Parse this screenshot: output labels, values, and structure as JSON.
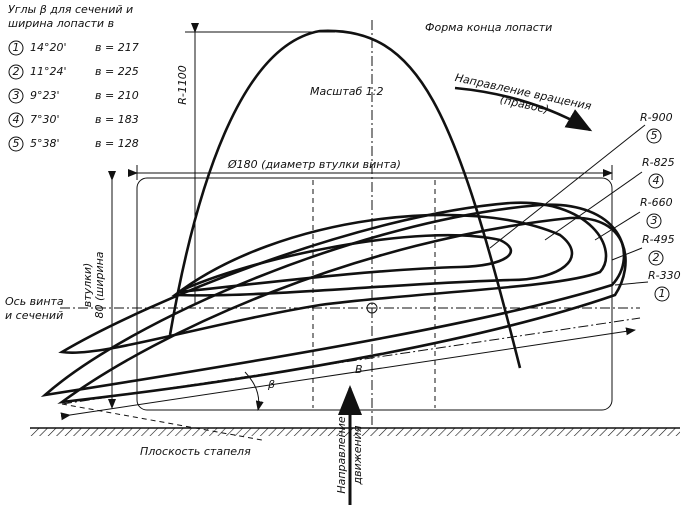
{
  "header": {
    "lines": [
      "Углы β для сечений и",
      "ширина лопасти в"
    ]
  },
  "legend": [
    {
      "number": "1",
      "angle": "14°20'",
      "width": "в = 217"
    },
    {
      "number": "2",
      "angle": "11°24'",
      "width": "в = 225"
    },
    {
      "number": "3",
      "angle": "9°23'",
      "width": "в = 210"
    },
    {
      "number": "4",
      "angle": "7°30'",
      "width": "в = 183"
    },
    {
      "number": "5",
      "angle": "5°38'",
      "width": "в = 128"
    }
  ],
  "labels": {
    "tip_shape": "Форма конца лопасти",
    "radius_tip": "R-1100",
    "scale": "Масштаб 1:2",
    "rotation": "Направление вращения",
    "rotation_sense": "(правое)",
    "hub_diameter": "Ø180 (диаметр втулки винта)",
    "hub_width_line1": "80 (ширина",
    "hub_width_line2": "втулки)",
    "axis_line1": "Ось винта",
    "axis_line2": "и сечений",
    "beta": "β",
    "chord": "В",
    "slipway": "Плоскость стапеля",
    "motion_line1": "Направление",
    "motion_line2": "движения"
  },
  "sections": [
    {
      "radius": "R-900",
      "number": "5"
    },
    {
      "radius": "R-825",
      "number": "4"
    },
    {
      "radius": "R-660",
      "number": "3"
    },
    {
      "radius": "R-495",
      "number": "2"
    },
    {
      "radius": "R-330",
      "number": "1"
    }
  ]
}
